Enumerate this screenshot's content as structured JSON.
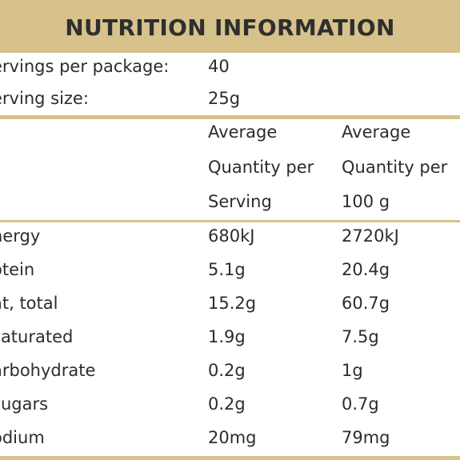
{
  "header": {
    "title": "NUTRITION INFORMATION"
  },
  "servings": {
    "per_package_label": "ervings per package:",
    "per_package_value": "40",
    "size_label": "erving size:",
    "size_value": "25g"
  },
  "columns": {
    "serving": [
      "Average",
      "Quantity per",
      "Serving"
    ],
    "per100": [
      "Average",
      "Quantity per",
      "100 g"
    ]
  },
  "rows": [
    {
      "label": "nergy",
      "serving": "680kJ",
      "per100": "2720kJ"
    },
    {
      "label": "otein",
      "serving": "5.1g",
      "per100": "20.4g"
    },
    {
      "label": "at, total",
      "serving": "15.2g",
      "per100": "60.7g"
    },
    {
      "label": "saturated",
      "serving": "1.9g",
      "per100": "7.5g"
    },
    {
      "label": "arbohydrate",
      "serving": "0.2g",
      "per100": "1g"
    },
    {
      "label": "sugars",
      "serving": "0.2g",
      "per100": "0.7g"
    },
    {
      "label": "odium",
      "serving": "20mg",
      "per100": "79mg"
    }
  ],
  "colors": {
    "accent": "#d7c28c",
    "text": "#2c2c2c"
  }
}
